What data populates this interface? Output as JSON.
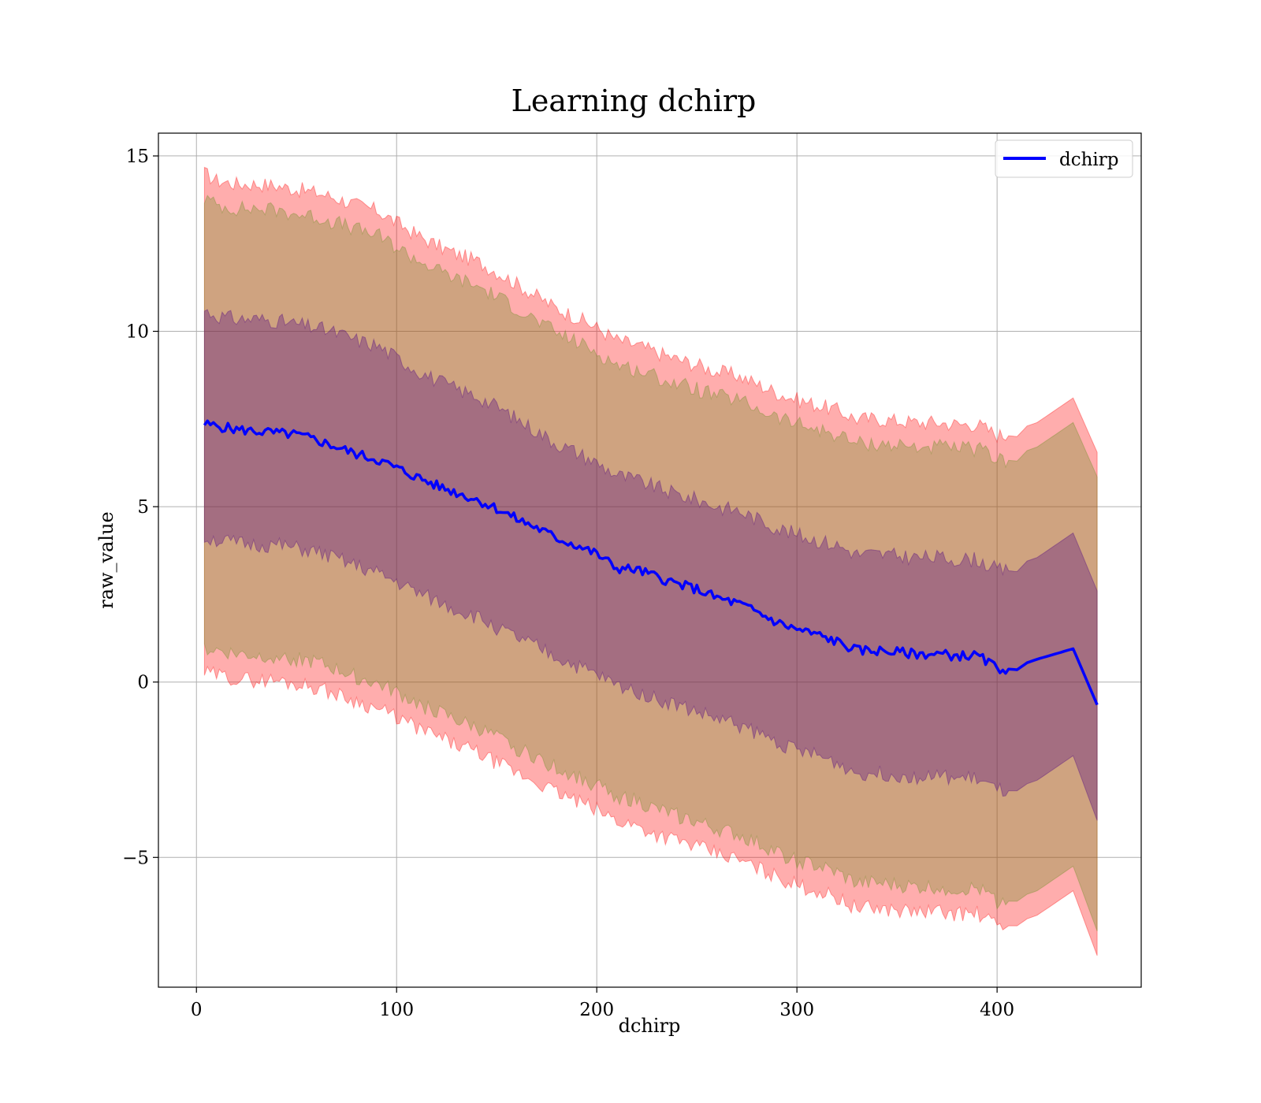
{
  "chart_data": {
    "type": "line",
    "title": "Learning dchirp",
    "xlabel": "dchirp",
    "ylabel": "raw_value",
    "xlim": [
      -19,
      472
    ],
    "ylim": [
      -8.7,
      15.65
    ],
    "xticks": [
      0,
      100,
      200,
      300,
      400
    ],
    "xtick_labels": [
      "0",
      "100",
      "200",
      "300",
      "400"
    ],
    "yticks": [
      -5,
      0,
      5,
      10,
      15
    ],
    "ytick_labels": [
      "−5",
      "0",
      "5",
      "10",
      "15"
    ],
    "grid": true,
    "legend_position": "top-right",
    "x": [
      4,
      10,
      20,
      30,
      40,
      50,
      60,
      70,
      80,
      90,
      100,
      110,
      120,
      130,
      140,
      150,
      160,
      170,
      180,
      190,
      200,
      210,
      220,
      230,
      240,
      250,
      260,
      270,
      280,
      290,
      300,
      310,
      320,
      330,
      340,
      350,
      360,
      370,
      380,
      390,
      400,
      410,
      415,
      420,
      438,
      450
    ],
    "series": [
      {
        "name": "dchirp",
        "color": "#0000ff",
        "values": [
          7.35,
          7.3,
          7.2,
          7.15,
          7.1,
          7.05,
          6.9,
          6.7,
          6.5,
          6.35,
          6.1,
          5.85,
          5.6,
          5.4,
          5.2,
          4.95,
          4.65,
          4.4,
          4.1,
          3.9,
          3.65,
          3.25,
          3.2,
          3.0,
          2.8,
          2.65,
          2.4,
          2.25,
          2.0,
          1.7,
          1.5,
          1.35,
          1.15,
          0.9,
          0.9,
          0.85,
          0.8,
          0.8,
          0.75,
          0.75,
          0.4,
          0.35,
          0.55,
          0.65,
          0.95,
          -0.65
        ]
      }
    ],
    "bands": [
      {
        "color": "#ff0000",
        "opacity": 0.32,
        "upper": [
          14.5,
          14.3,
          14.2,
          14.2,
          14.15,
          14.05,
          13.95,
          13.8,
          13.6,
          13.45,
          13.1,
          12.75,
          12.45,
          12.2,
          12.0,
          11.7,
          11.35,
          11.0,
          10.65,
          10.4,
          10.1,
          9.75,
          9.6,
          9.4,
          9.2,
          9.05,
          8.85,
          8.75,
          8.5,
          8.25,
          8.05,
          7.9,
          7.75,
          7.5,
          7.5,
          7.45,
          7.4,
          7.4,
          7.35,
          7.35,
          7.05,
          7.0,
          7.3,
          7.4,
          8.1,
          6.55
        ],
        "lower": [
          0.25,
          0.2,
          0.1,
          0.05,
          0.05,
          -0.05,
          -0.15,
          -0.35,
          -0.55,
          -0.75,
          -1.0,
          -1.3,
          -1.55,
          -1.8,
          -2.0,
          -2.3,
          -2.6,
          -2.85,
          -3.15,
          -3.4,
          -3.65,
          -3.95,
          -4.1,
          -4.35,
          -4.5,
          -4.7,
          -4.9,
          -5.05,
          -5.3,
          -5.55,
          -5.8,
          -5.95,
          -6.15,
          -6.45,
          -6.45,
          -6.5,
          -6.55,
          -6.55,
          -6.6,
          -6.6,
          -6.95,
          -6.95,
          -6.75,
          -6.65,
          -5.95,
          -7.8
        ]
      },
      {
        "color": "#6b8e23",
        "opacity": 0.32,
        "upper": [
          13.8,
          13.6,
          13.5,
          13.5,
          13.45,
          13.35,
          13.25,
          13.1,
          12.9,
          12.75,
          12.4,
          12.05,
          11.75,
          11.5,
          11.3,
          11.0,
          10.65,
          10.3,
          9.95,
          9.7,
          9.4,
          9.05,
          8.9,
          8.7,
          8.5,
          8.35,
          8.15,
          8.05,
          7.8,
          7.55,
          7.35,
          7.2,
          7.05,
          6.8,
          6.8,
          6.75,
          6.7,
          6.7,
          6.65,
          6.65,
          6.35,
          6.3,
          6.6,
          6.7,
          7.4,
          5.85
        ],
        "lower": [
          0.95,
          0.9,
          0.8,
          0.75,
          0.75,
          0.65,
          0.55,
          0.35,
          0.15,
          -0.05,
          -0.3,
          -0.6,
          -0.85,
          -1.1,
          -1.3,
          -1.6,
          -1.9,
          -2.15,
          -2.45,
          -2.7,
          -2.95,
          -3.25,
          -3.4,
          -3.65,
          -3.8,
          -4.0,
          -4.2,
          -4.35,
          -4.6,
          -4.85,
          -5.1,
          -5.25,
          -5.45,
          -5.75,
          -5.75,
          -5.8,
          -5.85,
          -5.85,
          -5.9,
          -5.9,
          -6.25,
          -6.25,
          -6.05,
          -5.95,
          -5.25,
          -7.1
        ]
      },
      {
        "color": "#4b0082",
        "opacity": 0.32,
        "upper": [
          10.6,
          10.45,
          10.35,
          10.35,
          10.3,
          10.2,
          10.1,
          9.95,
          9.75,
          9.6,
          9.25,
          8.9,
          8.6,
          8.35,
          8.15,
          7.85,
          7.5,
          7.15,
          6.8,
          6.55,
          6.25,
          5.9,
          5.75,
          5.55,
          5.35,
          5.2,
          5.0,
          4.9,
          4.65,
          4.4,
          4.2,
          4.05,
          3.9,
          3.65,
          3.65,
          3.6,
          3.55,
          3.55,
          3.5,
          3.5,
          3.2,
          3.15,
          3.45,
          3.55,
          4.25,
          2.6
        ],
        "lower": [
          4.1,
          4.05,
          3.95,
          3.9,
          3.9,
          3.8,
          3.7,
          3.5,
          3.3,
          3.1,
          2.85,
          2.55,
          2.3,
          2.05,
          1.85,
          1.55,
          1.25,
          1.0,
          0.7,
          0.45,
          0.2,
          -0.1,
          -0.25,
          -0.5,
          -0.65,
          -0.85,
          -1.05,
          -1.2,
          -1.45,
          -1.7,
          -1.95,
          -2.1,
          -2.3,
          -2.6,
          -2.6,
          -2.65,
          -2.7,
          -2.7,
          -2.75,
          -2.75,
          -3.1,
          -3.1,
          -2.9,
          -2.8,
          -2.1,
          -3.95
        ]
      }
    ]
  }
}
